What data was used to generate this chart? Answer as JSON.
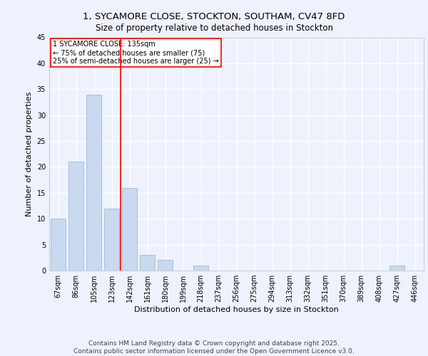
{
  "title_line1": "1, SYCAMORE CLOSE, STOCKTON, SOUTHAM, CV47 8FD",
  "title_line2": "Size of property relative to detached houses in Stockton",
  "xlabel": "Distribution of detached houses by size in Stockton",
  "ylabel": "Number of detached properties",
  "categories": [
    "67sqm",
    "86sqm",
    "105sqm",
    "123sqm",
    "142sqm",
    "161sqm",
    "180sqm",
    "199sqm",
    "218sqm",
    "237sqm",
    "256sqm",
    "275sqm",
    "294sqm",
    "313sqm",
    "332sqm",
    "351sqm",
    "370sqm",
    "389sqm",
    "408sqm",
    "427sqm",
    "446sqm"
  ],
  "values": [
    10,
    21,
    34,
    12,
    16,
    3,
    2,
    0,
    1,
    0,
    0,
    0,
    0,
    0,
    0,
    0,
    0,
    0,
    0,
    1,
    0
  ],
  "bar_color": "#c9d9f0",
  "bar_edgecolor": "#a0b8d8",
  "vline_x": 3.5,
  "vline_color": "red",
  "ylim": [
    0,
    45
  ],
  "yticks": [
    0,
    5,
    10,
    15,
    20,
    25,
    30,
    35,
    40,
    45
  ],
  "annotation_text": "1 SYCAMORE CLOSE: 135sqm\n← 75% of detached houses are smaller (75)\n25% of semi-detached houses are larger (25) →",
  "annotation_boxcolor": "white",
  "annotation_edgecolor": "red",
  "footer_text": "Contains HM Land Registry data © Crown copyright and database right 2025.\nContains public sector information licensed under the Open Government Licence v3.0.",
  "bg_color": "#eef2fc",
  "plot_bg_color": "#eef2fc",
  "grid_color": "white",
  "title_fontsize": 9.5,
  "subtitle_fontsize": 8.5,
  "axis_label_fontsize": 8,
  "tick_fontsize": 7,
  "footer_fontsize": 6.5,
  "annot_fontsize": 7
}
